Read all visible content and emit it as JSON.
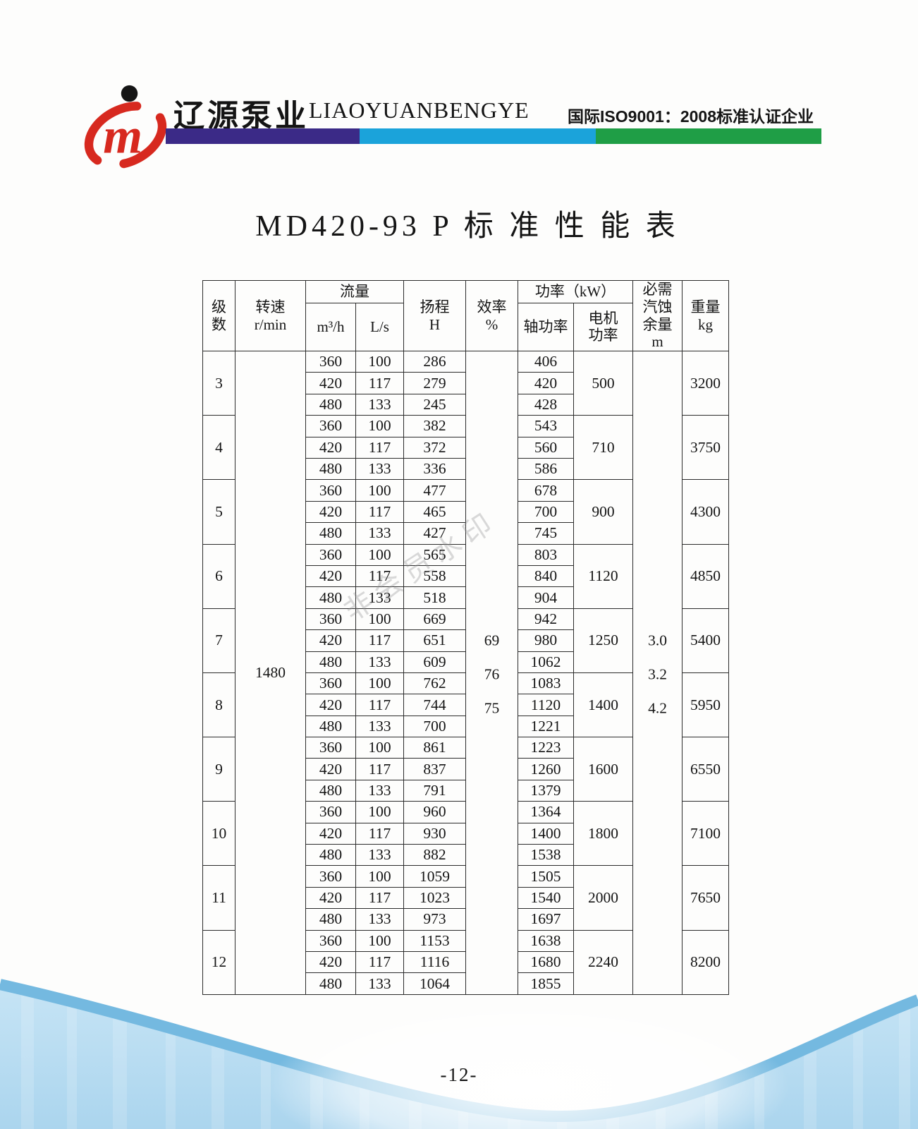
{
  "header": {
    "brand_cn": "辽源泵业",
    "brand_en": "LIAOYUANBENGYE",
    "cert": "国际ISO9001：2008标准认证企业",
    "logo_letter": "m",
    "colors": {
      "purple": "#3b2a87",
      "cyan": "#1ba3da",
      "green": "#1f9e46",
      "logo_red": "#d7291f"
    }
  },
  "title": "MD420-93 P 标 准 性 能 表",
  "watermark": "非会员水印",
  "table": {
    "headers": {
      "stage": "级\n数",
      "speed": "转速\nr/min",
      "flow": "流量",
      "flow_m3h": "m³/h",
      "flow_ls": "L/s",
      "head": "扬程\nH",
      "efficiency": "效率\n%",
      "power": "功率（kW）",
      "shaft_power": "轴功率",
      "motor_power": "电机\n功率",
      "npsh": "必需\n汽蚀\n余量\nm",
      "weight": "重量\nkg"
    },
    "speed_rpm": "1480",
    "efficiency_values": [
      "69",
      "76",
      "75"
    ],
    "npsh_values": [
      "3.0",
      "3.2",
      "4.2"
    ],
    "stages": [
      {
        "stage": "3",
        "motor": "500",
        "weight": "3200",
        "rows": [
          [
            "360",
            "100",
            "286",
            "406"
          ],
          [
            "420",
            "117",
            "279",
            "420"
          ],
          [
            "480",
            "133",
            "245",
            "428"
          ]
        ]
      },
      {
        "stage": "4",
        "motor": "710",
        "weight": "3750",
        "rows": [
          [
            "360",
            "100",
            "382",
            "543"
          ],
          [
            "420",
            "117",
            "372",
            "560"
          ],
          [
            "480",
            "133",
            "336",
            "586"
          ]
        ]
      },
      {
        "stage": "5",
        "motor": "900",
        "weight": "4300",
        "rows": [
          [
            "360",
            "100",
            "477",
            "678"
          ],
          [
            "420",
            "117",
            "465",
            "700"
          ],
          [
            "480",
            "133",
            "427",
            "745"
          ]
        ]
      },
      {
        "stage": "6",
        "motor": "1120",
        "weight": "4850",
        "rows": [
          [
            "360",
            "100",
            "565",
            "803"
          ],
          [
            "420",
            "117",
            "558",
            "840"
          ],
          [
            "480",
            "133",
            "518",
            "904"
          ]
        ]
      },
      {
        "stage": "7",
        "motor": "1250",
        "weight": "5400",
        "rows": [
          [
            "360",
            "100",
            "669",
            "942"
          ],
          [
            "420",
            "117",
            "651",
            "980"
          ],
          [
            "480",
            "133",
            "609",
            "1062"
          ]
        ]
      },
      {
        "stage": "8",
        "motor": "1400",
        "weight": "5950",
        "rows": [
          [
            "360",
            "100",
            "762",
            "1083"
          ],
          [
            "420",
            "117",
            "744",
            "1120"
          ],
          [
            "480",
            "133",
            "700",
            "1221"
          ]
        ]
      },
      {
        "stage": "9",
        "motor": "1600",
        "weight": "6550",
        "rows": [
          [
            "360",
            "100",
            "861",
            "1223"
          ],
          [
            "420",
            "117",
            "837",
            "1260"
          ],
          [
            "480",
            "133",
            "791",
            "1379"
          ]
        ]
      },
      {
        "stage": "10",
        "motor": "1800",
        "weight": "7100",
        "rows": [
          [
            "360",
            "100",
            "960",
            "1364"
          ],
          [
            "420",
            "117",
            "930",
            "1400"
          ],
          [
            "480",
            "133",
            "882",
            "1538"
          ]
        ]
      },
      {
        "stage": "11",
        "motor": "2000",
        "weight": "7650",
        "rows": [
          [
            "360",
            "100",
            "1059",
            "1505"
          ],
          [
            "420",
            "117",
            "1023",
            "1540"
          ],
          [
            "480",
            "133",
            "973",
            "1697"
          ]
        ]
      },
      {
        "stage": "12",
        "motor": "2240",
        "weight": "8200",
        "rows": [
          [
            "360",
            "100",
            "1153",
            "1638"
          ],
          [
            "420",
            "117",
            "1116",
            "1680"
          ],
          [
            "480",
            "133",
            "1064",
            "1855"
          ]
        ]
      }
    ]
  },
  "footer": {
    "page_number": "-12-"
  }
}
